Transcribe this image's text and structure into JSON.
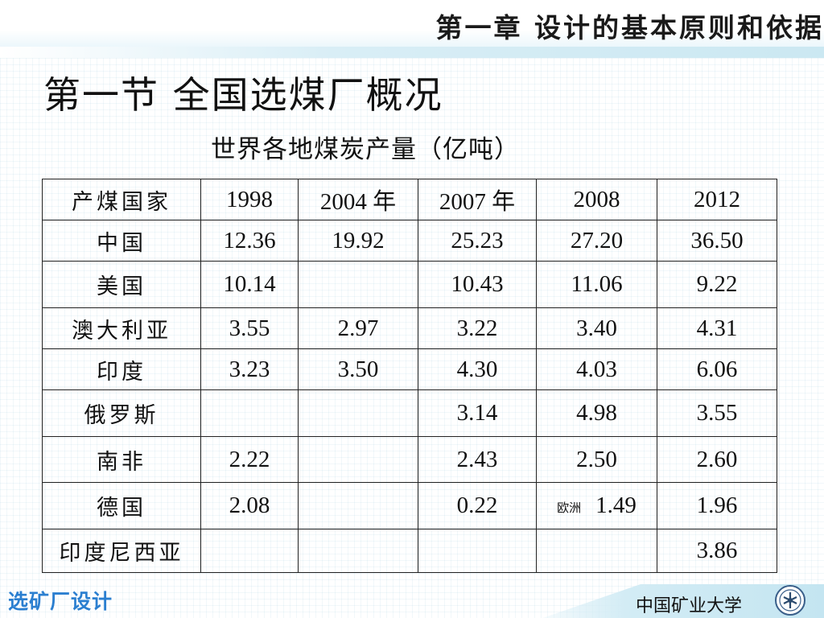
{
  "header": {
    "chapter_title": "第一章  设计的基本原则和依据"
  },
  "section_title": "第一节  全国选煤厂概况",
  "table": {
    "caption": "世界各地煤炭产量（亿吨）",
    "headers": [
      "产煤国家",
      "1998",
      "2004 年",
      "2007 年",
      "2008",
      "2012"
    ],
    "rows": [
      {
        "country": "中国",
        "v1998": "12.36",
        "v2004": "19.92",
        "v2007": "25.23",
        "v2008": "27.20",
        "v2012": "36.50"
      },
      {
        "country": "美国",
        "v1998": "10.14",
        "v2004": "",
        "v2007": "10.43",
        "v2008": "11.06",
        "v2012": "9.22"
      },
      {
        "country": "澳大利亚",
        "v1998": "3.55",
        "v2004": "2.97",
        "v2007": "3.22",
        "v2008": "3.40",
        "v2012": "4.31"
      },
      {
        "country": "印度",
        "v1998": "3.23",
        "v2004": "3.50",
        "v2007": "4.30",
        "v2008": "4.03",
        "v2012": "6.06"
      },
      {
        "country": "俄罗斯",
        "v1998": "",
        "v2004": "",
        "v2007": "3.14",
        "v2008": "4.98",
        "v2012": "3.55"
      },
      {
        "country": "南非",
        "v1998": "2.22",
        "v2004": "",
        "v2007": "2.43",
        "v2008": "2.50",
        "v2012": "2.60"
      },
      {
        "country": "德国",
        "v1998": "2.08",
        "v2004": "",
        "v2007": "0.22",
        "v2008_note": "欧洲",
        "v2008": "1.49",
        "v2012": "1.96"
      },
      {
        "country": "印度尼西亚",
        "v1998": "",
        "v2004": "",
        "v2007": "",
        "v2008": "",
        "v2012": "3.86"
      }
    ]
  },
  "footer": {
    "course_name": "选矿厂设计",
    "university": "中国矿业大学",
    "logo_icon": "university-emblem-icon"
  },
  "colors": {
    "course_name": "#2b7fd0",
    "band": "#cbe8f2"
  }
}
